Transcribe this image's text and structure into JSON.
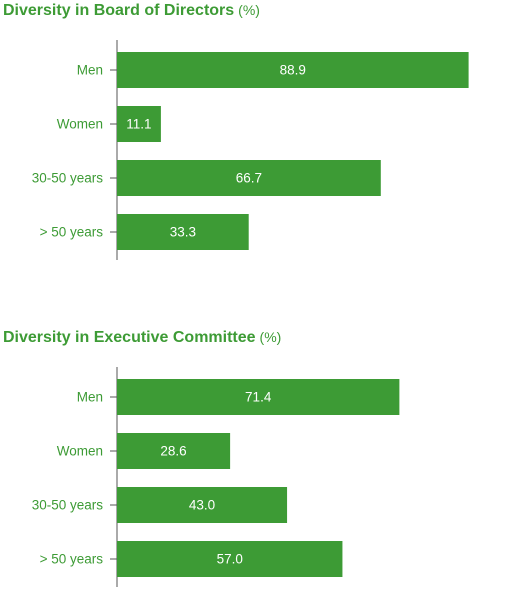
{
  "chart_data": [
    {
      "type": "bar",
      "orientation": "horizontal",
      "title": "Diversity in Board of Directors",
      "unit": "(%)",
      "categories": [
        "Men",
        "Women",
        "30-50 years",
        "> 50 years"
      ],
      "values": [
        88.9,
        11.1,
        66.7,
        33.3
      ],
      "xlim": [
        0,
        100
      ],
      "grid": false,
      "bar_color": "#3d9b35"
    },
    {
      "type": "bar",
      "orientation": "horizontal",
      "title": "Diversity in Executive Committee",
      "unit": "(%)",
      "categories": [
        "Men",
        "Women",
        "30-50 years",
        "> 50 years"
      ],
      "values": [
        71.4,
        28.6,
        43.0,
        57.0
      ],
      "xlim": [
        0,
        100
      ],
      "grid": false,
      "bar_color": "#3d9b35"
    }
  ],
  "colors": {
    "accent": "#3d9b35",
    "axis": "#555555"
  }
}
